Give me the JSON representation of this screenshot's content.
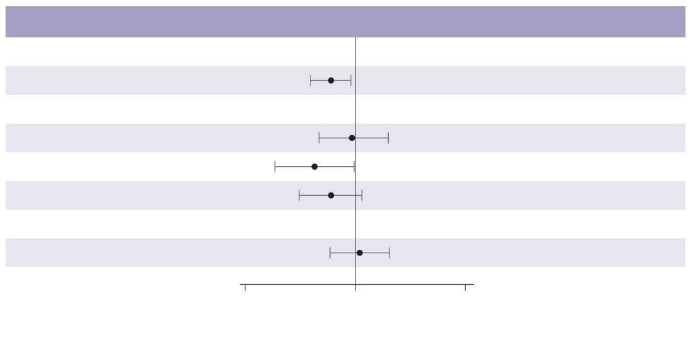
{
  "colors": {
    "header_band": "#a4a0c3",
    "shaded_row": "#e7e5ef",
    "marker": "#231f20",
    "whisker": "#4d4d4d",
    "axis": "#231f20",
    "reference_line": "#3c3c3c",
    "background": "#ffffff"
  },
  "chart_data": {
    "type": "forest",
    "title": "",
    "xlabel": "",
    "ylabel": "",
    "grid": false,
    "legend": "none",
    "xlim": [
      -1.05,
      1.08
    ],
    "x_ticks": [
      -1,
      0,
      1
    ],
    "x_tick_labels": [
      "",
      "",
      ""
    ],
    "reference_value": 0,
    "rows": [
      {
        "label": "",
        "shaded": false,
        "estimate": null,
        "ci_low": null,
        "ci_high": null
      },
      {
        "label": "",
        "shaded": true,
        "estimate": -0.22,
        "ci_low": -0.41,
        "ci_high": -0.04
      },
      {
        "label": "",
        "shaded": false,
        "estimate": null,
        "ci_low": null,
        "ci_high": null
      },
      {
        "label": "",
        "shaded": true,
        "estimate": -0.03,
        "ci_low": -0.33,
        "ci_high": 0.3
      },
      {
        "label": "",
        "shaded": false,
        "estimate": -0.37,
        "ci_low": -0.73,
        "ci_high": -0.01
      },
      {
        "label": "",
        "shaded": true,
        "estimate": -0.22,
        "ci_low": -0.51,
        "ci_high": 0.06
      },
      {
        "label": "",
        "shaded": false,
        "estimate": null,
        "ci_low": null,
        "ci_high": null
      },
      {
        "label": "",
        "shaded": true,
        "estimate": 0.04,
        "ci_low": -0.23,
        "ci_high": 0.31
      }
    ]
  }
}
